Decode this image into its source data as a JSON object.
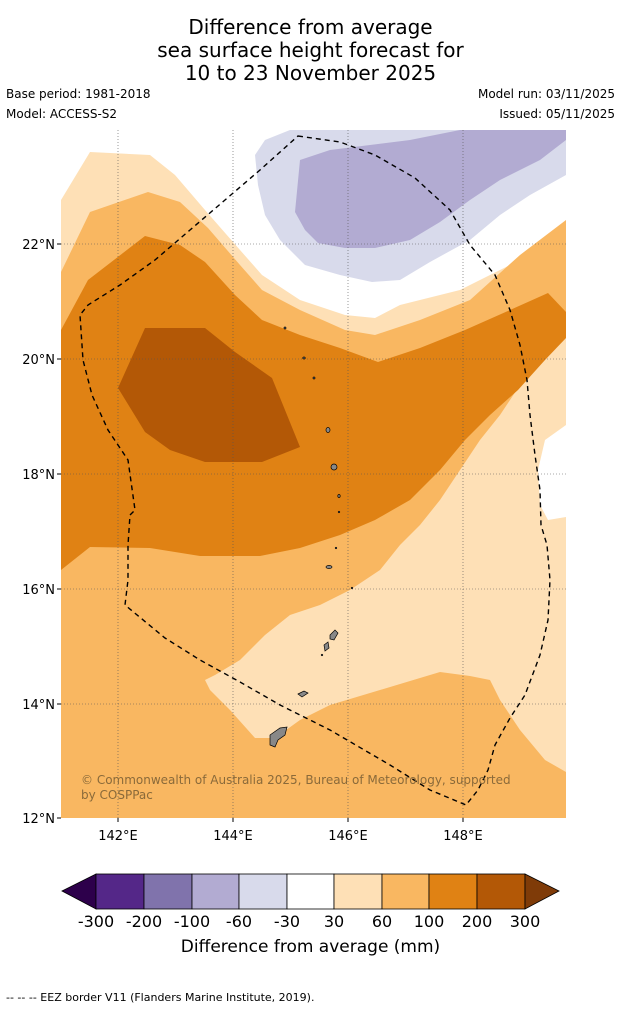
{
  "title": {
    "line1": "Difference from average",
    "line2": "sea surface height forecast for",
    "line3": "10 to 23 November 2025"
  },
  "meta": {
    "base_period": "Base period: 1981-2018",
    "model": "Model: ACCESS-S2",
    "model_run": "Model run: 03/11/2025",
    "issued": "Issued: 05/11/2025"
  },
  "map": {
    "lat_labels": [
      "22°N",
      "20°N",
      "18°N",
      "16°N",
      "14°N",
      "12°N"
    ],
    "lon_labels": [
      "142°E",
      "144°E",
      "146°E",
      "148°E"
    ],
    "credit_line1": "© Commonwealth of Australia 2025, Bureau of Meteorology, supported",
    "credit_line2": "by COSPPac"
  },
  "colorbar": {
    "title": "Difference from average (mm)",
    "tick_labels": [
      "-300",
      "-200",
      "-100",
      "-60",
      "-30",
      "30",
      "60",
      "100",
      "200",
      "300"
    ],
    "colors": {
      "below_min": "#2d004b",
      "c1": "#542788",
      "c2": "#8073ac",
      "c3": "#b2abd2",
      "c4": "#d8daeb",
      "c5": "#ffffff",
      "c6": "#fee0b6",
      "c7": "#f9b761",
      "c8": "#e08214",
      "c9": "#b35806",
      "above_max": "#7f3b08"
    }
  },
  "footer": {
    "legend_text": "--  --  -- EEZ border V11 (Flanders Marine Institute, 2019)."
  }
}
